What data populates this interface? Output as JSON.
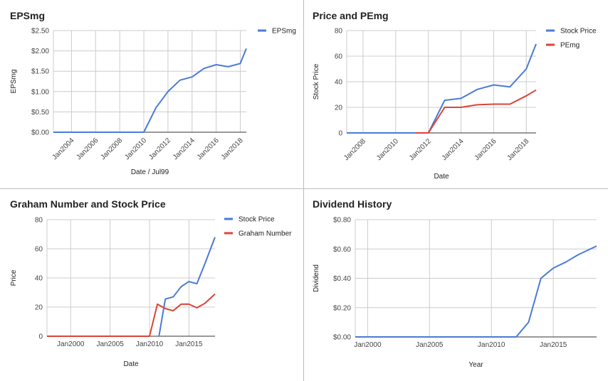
{
  "chart_data": [
    {
      "type": "line",
      "title": "EPSmg",
      "xlabel": "Date / Jul99",
      "ylabel": "EPSmg",
      "xlim": [
        2002.5,
        2018.5
      ],
      "ylim": [
        0,
        2.5
      ],
      "xticks": [
        {
          "v": 2004,
          "label": "Jan2004"
        },
        {
          "v": 2006,
          "label": "Jan2006"
        },
        {
          "v": 2008,
          "label": "Jan2008"
        },
        {
          "v": 2010,
          "label": "Jan2010"
        },
        {
          "v": 2012,
          "label": "Jan2012"
        },
        {
          "v": 2014,
          "label": "Jan2014"
        },
        {
          "v": 2016,
          "label": "Jan2016"
        },
        {
          "v": 2018,
          "label": "Jan2018"
        }
      ],
      "yticks": [
        {
          "v": 0,
          "label": "$0.00"
        },
        {
          "v": 0.5,
          "label": "$0.50"
        },
        {
          "v": 1,
          "label": "$1.00"
        },
        {
          "v": 1.5,
          "label": "$1.50"
        },
        {
          "v": 2,
          "label": "$2.00"
        },
        {
          "v": 2.5,
          "label": "$2.50"
        }
      ],
      "x_label_rotation": -45,
      "grid": true,
      "legend": "right",
      "series": [
        {
          "name": "EPSmg",
          "color": "#4a7bd6",
          "x": [
            2002.5,
            2004,
            2006,
            2008,
            2010,
            2011,
            2012,
            2013,
            2014,
            2015,
            2016,
            2017,
            2018,
            2018.5
          ],
          "y": [
            0,
            0,
            0,
            0,
            0,
            0.6,
            1.0,
            1.28,
            1.36,
            1.57,
            1.66,
            1.61,
            1.69,
            2.06
          ]
        }
      ]
    },
    {
      "type": "line",
      "title": "Price and PEmg",
      "xlabel": "Date",
      "ylabel": "Stock Price",
      "xlim": [
        2007,
        2018.6
      ],
      "ylim": [
        0,
        80
      ],
      "xticks": [
        {
          "v": 2008,
          "label": "Jan2008"
        },
        {
          "v": 2010,
          "label": "Jan2010"
        },
        {
          "v": 2012,
          "label": "Jan2012"
        },
        {
          "v": 2014,
          "label": "Jan2014"
        },
        {
          "v": 2016,
          "label": "Jan2016"
        },
        {
          "v": 2018,
          "label": "Jan2018"
        }
      ],
      "yticks": [
        {
          "v": 0,
          "label": "0"
        },
        {
          "v": 20,
          "label": "20"
        },
        {
          "v": 40,
          "label": "40"
        },
        {
          "v": 60,
          "label": "60"
        },
        {
          "v": 80,
          "label": "80"
        }
      ],
      "x_label_rotation": -45,
      "grid": true,
      "legend": "right",
      "series": [
        {
          "name": "Stock Price",
          "color": "#4a7bd6",
          "x": [
            2007,
            2008,
            2010,
            2011.2,
            2012,
            2013,
            2014,
            2015,
            2016,
            2017,
            2018,
            2018.6
          ],
          "y": [
            0,
            0,
            0,
            0,
            0,
            25.5,
            27,
            34,
            37.5,
            36,
            50,
            69.5
          ]
        },
        {
          "name": "PEmg",
          "color": "#db4437",
          "x": [
            2011.2,
            2012,
            2013,
            2014,
            2015,
            2016,
            2017,
            2018,
            2018.6
          ],
          "y": [
            0,
            0,
            20,
            20,
            22,
            22.5,
            22.5,
            29,
            33.5
          ]
        }
      ]
    },
    {
      "type": "line",
      "title": "Graham Number and Stock Price",
      "xlabel": "Date",
      "ylabel": "Price",
      "xlim": [
        1997,
        2018.3
      ],
      "ylim": [
        0,
        80
      ],
      "xticks": [
        {
          "v": 2000,
          "label": "Jan2000"
        },
        {
          "v": 2005,
          "label": "Jan2005"
        },
        {
          "v": 2010,
          "label": "Jan2010"
        },
        {
          "v": 2015,
          "label": "Jan2015"
        }
      ],
      "yticks": [
        {
          "v": 0,
          "label": "0"
        },
        {
          "v": 20,
          "label": "20"
        },
        {
          "v": 40,
          "label": "40"
        },
        {
          "v": 60,
          "label": "60"
        },
        {
          "v": 80,
          "label": "80"
        }
      ],
      "x_label_rotation": 0,
      "grid": true,
      "legend": "right",
      "series": [
        {
          "name": "Stock Price",
          "color": "#4a7bd6",
          "x": [
            2011.2,
            2012,
            2013,
            2014,
            2015,
            2016,
            2017,
            2018.3
          ],
          "y": [
            0,
            25.5,
            27,
            34,
            37.5,
            36,
            49.5,
            68
          ]
        },
        {
          "name": "Graham Number",
          "color": "#db4437",
          "x": [
            1997,
            2005,
            2010,
            2011,
            2012,
            2013,
            2014,
            2015,
            2016,
            2017,
            2018.3
          ],
          "y": [
            0,
            0,
            0,
            22,
            19,
            17.5,
            22,
            22,
            19.5,
            22.5,
            29
          ]
        }
      ]
    },
    {
      "type": "line",
      "title": "Dividend History",
      "xlabel": "Year",
      "ylabel": "Dividend",
      "xlim": [
        1999,
        2018.5
      ],
      "ylim": [
        0,
        0.8
      ],
      "xticks": [
        {
          "v": 2000,
          "label": "Jan2000"
        },
        {
          "v": 2005,
          "label": "Jan2005"
        },
        {
          "v": 2010,
          "label": "Jan2010"
        },
        {
          "v": 2015,
          "label": "Jan2015"
        }
      ],
      "yticks": [
        {
          "v": 0,
          "label": "$0.00"
        },
        {
          "v": 0.2,
          "label": "$0.20"
        },
        {
          "v": 0.4,
          "label": "$0.40"
        },
        {
          "v": 0.6,
          "label": "$0.60"
        },
        {
          "v": 0.8,
          "label": "$0.80"
        }
      ],
      "x_label_rotation": 0,
      "grid": true,
      "legend": "none",
      "series": [
        {
          "color": "#4a7bd6",
          "x": [
            1999,
            2005,
            2010,
            2012,
            2013,
            2014,
            2015,
            2016,
            2017,
            2018.5
          ],
          "y": [
            0,
            0,
            0,
            0,
            0.1,
            0.4,
            0.47,
            0.51,
            0.56,
            0.62
          ]
        }
      ]
    }
  ]
}
